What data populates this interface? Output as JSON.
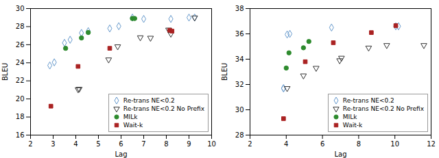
{
  "chart_data": [
    {
      "type": "scatter",
      "xlabel": "Lag",
      "ylabel": "BLEU",
      "xlim": [
        2,
        10
      ],
      "ylim": [
        16,
        30
      ],
      "xticks": [
        2,
        3,
        4,
        5,
        6,
        7,
        8,
        9,
        10
      ],
      "yticks": [
        16,
        18,
        20,
        22,
        24,
        26,
        28,
        30
      ],
      "grid": false,
      "legend": "lower right",
      "series": [
        {
          "name": "Re-trans NE<0.2",
          "color": "#6699cc",
          "marker": "open_diamond",
          "x": [
            2.85,
            3.05,
            3.5,
            3.75,
            4.25,
            4.55,
            5.5,
            5.9,
            6.5,
            7.0,
            8.2,
            9.0,
            9.25
          ],
          "values": [
            23.7,
            24.05,
            26.2,
            26.55,
            27.3,
            27.5,
            27.8,
            28.05,
            29.0,
            28.85,
            28.85,
            29.0,
            29.0
          ]
        },
        {
          "name": "Re-trans NE<0.2 No Prefix",
          "color": "#333333",
          "marker": "open_triangle_down",
          "x": [
            4.1,
            4.15,
            5.45,
            5.85,
            6.85,
            7.3,
            8.1,
            8.2,
            9.25
          ],
          "values": [
            21.05,
            21.1,
            24.35,
            25.8,
            26.8,
            26.75,
            27.65,
            27.2,
            29.0
          ]
        },
        {
          "name": "MILk",
          "color": "#2e8b2e",
          "marker": "circle",
          "x": [
            3.55,
            4.25,
            4.55,
            6.5,
            6.6
          ],
          "values": [
            25.6,
            26.75,
            27.35,
            28.9,
            28.9
          ]
        },
        {
          "name": "Wait-k",
          "color": "#aa2222",
          "marker": "square",
          "x": [
            2.9,
            4.1,
            5.5,
            8.15,
            8.25
          ],
          "values": [
            19.2,
            23.6,
            25.6,
            27.6,
            27.5
          ]
        }
      ]
    },
    {
      "type": "scatter",
      "xlabel": "Lag",
      "ylabel": "BLEU",
      "xlim": [
        2,
        12
      ],
      "ylim": [
        28,
        38
      ],
      "xticks": [
        2,
        4,
        6,
        8,
        10,
        12
      ],
      "yticks": [
        28,
        30,
        32,
        34,
        36,
        38
      ],
      "grid": false,
      "legend": "lower right",
      "series": [
        {
          "name": "Re-trans NE<0.2",
          "color": "#6699cc",
          "marker": "open_diamond",
          "x": [
            3.85,
            6.5,
            10.05,
            10.2,
            3.85,
            4.05,
            4.2
          ],
          "values": [
            31.7,
            36.5,
            36.6,
            36.6,
            31.7,
            35.95,
            36.0
          ]
        },
        {
          "name": "Re-trans NE<0.2 No Prefix",
          "color": "#333333",
          "marker": "open_triangle_down",
          "x": [
            4.05,
            4.95,
            5.65,
            6.95,
            7.05,
            8.55,
            9.55,
            11.6
          ],
          "values": [
            31.7,
            32.7,
            33.3,
            33.9,
            34.1,
            34.9,
            35.1,
            35.1
          ]
        },
        {
          "name": "MILk",
          "color": "#2e8b2e",
          "marker": "circle",
          "x": [
            4.0,
            4.15,
            4.95,
            5.25
          ],
          "values": [
            33.3,
            34.5,
            34.9,
            35.4
          ]
        },
        {
          "name": "Wait-k",
          "color": "#aa2222",
          "marker": "square",
          "x": [
            3.85,
            5.05,
            6.6,
            8.7,
            10.05
          ],
          "values": [
            29.3,
            33.8,
            35.3,
            36.1,
            36.65
          ]
        }
      ]
    }
  ]
}
